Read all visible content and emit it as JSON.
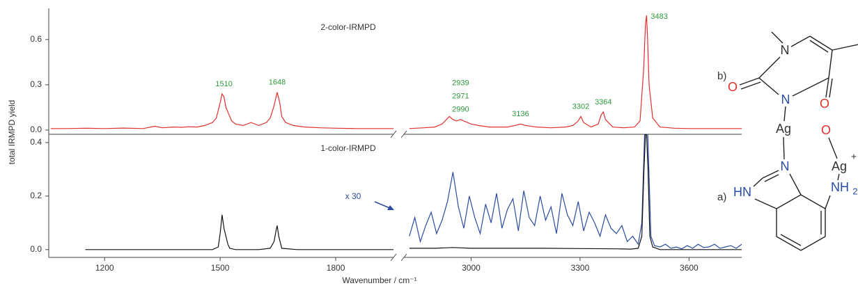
{
  "x_axis": {
    "label": "Wavenumber / cm⁻¹",
    "segments": [
      {
        "xlim": [
          1055,
          1950
        ],
        "xticks": [
          1200,
          1500,
          1800
        ]
      },
      {
        "xlim": [
          2815,
          3745
        ],
        "xticks": [
          3000,
          3300,
          3600
        ]
      }
    ]
  },
  "y_label": "total IRMPD yield",
  "chart_data": [
    {
      "type": "line",
      "title": "2-color-IRMPD",
      "ylim": [
        -0.028,
        0.807
      ],
      "yticks": [
        {
          "value": 0,
          "label": "0.0"
        },
        0.3,
        0.6
      ],
      "peak_labels": [
        1510,
        1648,
        [
          2939,
          2971,
          2990
        ],
        3136,
        3302,
        3364,
        3483
      ],
      "peak_label_color": "#2e9a3c",
      "series": [
        {
          "color": "#e0302c",
          "x": [
            1060,
            1100,
            1150,
            1200,
            1250,
            1300,
            1330,
            1350,
            1380,
            1400,
            1420,
            1440,
            1460,
            1480,
            1490,
            1500,
            1505,
            1510,
            1515,
            1520,
            1525,
            1530,
            1540,
            1560,
            1580,
            1600,
            1620,
            1630,
            1640,
            1648,
            1655,
            1660,
            1670,
            1690,
            1720,
            1760,
            1800,
            1850,
            1900,
            1950,
            2400,
            2830,
            2870,
            2900,
            2920,
            2940,
            2950,
            2960,
            2971,
            2980,
            2990,
            3000,
            3020,
            3050,
            3080,
            3100,
            3120,
            3136,
            3150,
            3180,
            3220,
            3260,
            3280,
            3295,
            3302,
            3310,
            3330,
            3350,
            3358,
            3364,
            3370,
            3390,
            3420,
            3450,
            3465,
            3475,
            3480,
            3483,
            3486,
            3490,
            3500,
            3520,
            3560,
            3600,
            3650,
            3700,
            3745
          ],
          "values": [
            0.01,
            0.01,
            0.012,
            0.01,
            0.013,
            0.01,
            0.025,
            0.015,
            0.02,
            0.018,
            0.022,
            0.02,
            0.03,
            0.05,
            0.08,
            0.18,
            0.24,
            0.22,
            0.15,
            0.12,
            0.09,
            0.06,
            0.04,
            0.03,
            0.05,
            0.03,
            0.05,
            0.08,
            0.16,
            0.25,
            0.18,
            0.09,
            0.05,
            0.03,
            0.02,
            0.015,
            0.012,
            0.01,
            0.01,
            0.01,
            null,
            0.01,
            0.015,
            0.02,
            0.04,
            0.09,
            0.07,
            0.06,
            0.07,
            0.06,
            0.05,
            0.04,
            0.03,
            0.02,
            0.02,
            0.02,
            0.03,
            0.04,
            0.03,
            0.02,
            0.015,
            0.02,
            0.03,
            0.06,
            0.09,
            0.05,
            0.02,
            0.04,
            0.1,
            0.12,
            0.07,
            0.02,
            0.015,
            0.02,
            0.06,
            0.4,
            0.7,
            0.76,
            0.6,
            0.3,
            0.08,
            0.02,
            0.012,
            0.01,
            0.01,
            0.01,
            0.01
          ]
        }
      ]
    },
    {
      "type": "line",
      "title": "1-color-IRMPD",
      "ylim": [
        -0.029,
        0.431
      ],
      "yticks": [
        {
          "value": 0,
          "label": "0.0"
        },
        0.2,
        0.4
      ],
      "scale_note": "x 30",
      "scale_note_color": "#2b4ba0",
      "series": [
        {
          "color": "#2b4ba0",
          "x": [
            2830,
            2845,
            2860,
            2875,
            2890,
            2905,
            2920,
            2935,
            2950,
            2965,
            2980,
            2995,
            3010,
            3025,
            3040,
            3055,
            3070,
            3085,
            3100,
            3115,
            3130,
            3145,
            3160,
            3175,
            3190,
            3205,
            3220,
            3235,
            3250,
            3265,
            3280,
            3295,
            3310,
            3325,
            3340,
            3355,
            3370,
            3385,
            3400,
            3415,
            3430,
            3445,
            3460,
            3470,
            3478,
            3486,
            3495,
            3505,
            3520,
            3535,
            3550,
            3565,
            3580,
            3595,
            3610,
            3625,
            3640,
            3655,
            3670,
            3685,
            3700,
            3715,
            3730,
            3745
          ],
          "values": [
            0.05,
            0.12,
            0.03,
            0.09,
            0.14,
            0.06,
            0.11,
            0.18,
            0.29,
            0.16,
            0.08,
            0.2,
            0.12,
            0.06,
            0.17,
            0.1,
            0.21,
            0.08,
            0.15,
            0.19,
            0.07,
            0.22,
            0.12,
            0.09,
            0.2,
            0.11,
            0.16,
            0.06,
            0.21,
            0.13,
            0.09,
            0.18,
            0.07,
            0.14,
            0.1,
            0.05,
            0.13,
            0.08,
            0.06,
            0.09,
            0.03,
            0.05,
            0.02,
            0.1,
            0.45,
            0.45,
            0.05,
            0.015,
            0.01,
            0.02,
            0.005,
            0.01,
            0.003,
            0.015,
            0.005,
            0.02,
            0.008,
            0.01,
            0.02,
            0.005,
            0.01,
            0.015,
            0.005,
            0.02
          ]
        },
        {
          "color": "#111111",
          "x": [
            1150,
            1200,
            1300,
            1400,
            1480,
            1495,
            1500,
            1505,
            1510,
            1515,
            1520,
            1525,
            1540,
            1600,
            1630,
            1640,
            1645,
            1648,
            1652,
            1660,
            1700,
            1800,
            1900,
            1950,
            2400,
            2830,
            2900,
            2950,
            3000,
            3100,
            3200,
            3300,
            3400,
            3440,
            3460,
            3470,
            3476,
            3480,
            3483,
            3487,
            3492,
            3500,
            3520,
            3600,
            3700,
            3745
          ],
          "values": [
            0,
            0,
            0,
            0,
            0,
            0.01,
            0.06,
            0.13,
            0.08,
            0.05,
            0.02,
            0.005,
            0,
            0,
            0.005,
            0.03,
            0.07,
            0.09,
            0.05,
            0.005,
            0,
            0,
            0,
            0,
            null,
            0.005,
            0.005,
            0.008,
            0.005,
            0.005,
            0.005,
            0.004,
            0.003,
            0.002,
            0.005,
            0.05,
            0.3,
            0.43,
            0.43,
            0.3,
            0.05,
            0.01,
            0,
            0,
            0,
            0
          ]
        }
      ]
    }
  ],
  "structure": {
    "b_label": "b)",
    "a_label": "a)",
    "atoms": [
      "N",
      "O",
      "N",
      "O",
      "Ag",
      "O",
      "Ag",
      "+",
      "N",
      "HN",
      "NH",
      "2"
    ]
  }
}
